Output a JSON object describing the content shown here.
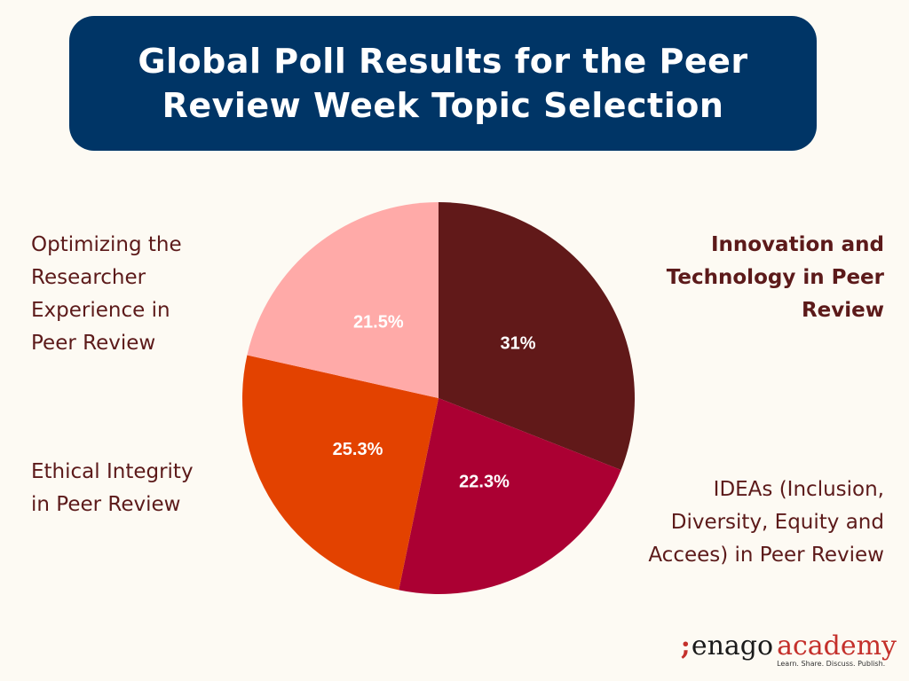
{
  "title": "Global Poll Results for the Peer Review Week Topic Selection",
  "chart_data": {
    "type": "pie",
    "title": "Global Poll Results for the Peer Review Week Topic Selection",
    "slices": [
      {
        "name": "Innovation and Technology in  Peer Review",
        "value": 31,
        "label": "31%",
        "color": "#611919"
      },
      {
        "name": "IDEAs (Inclusion, Diversity, Equity and Accees) in Peer Review",
        "value": 22.3,
        "label": "22.3%",
        "color": "#ab0033"
      },
      {
        "name": "Ethical Integrity in Peer Review",
        "value": 25.3,
        "label": "25.3%",
        "color": "#e34200"
      },
      {
        "name": "Optimizing the Researcher Experience in Peer Review",
        "value": 21.5,
        "label": "21.5%",
        "color": "#ffaaa8"
      }
    ],
    "start_angle": "12 o'clock",
    "direction": "clockwise"
  },
  "legend": {
    "innovation": [
      "Innovation and",
      "Technology in  Peer",
      "Review"
    ],
    "ideas": [
      "IDEAs (Inclusion,",
      "Diversity, Equity and",
      "Accees) in Peer Review"
    ],
    "ethical": [
      "Ethical Integrity",
      "in Peer Review"
    ],
    "optimizing": [
      "Optimizing the",
      "Researcher",
      "Experience in",
      "Peer Review"
    ]
  },
  "brand": {
    "mark": ";",
    "name": "enago",
    "academy": "academy",
    "tagline": "Learn. Share. Discuss. Publish."
  }
}
